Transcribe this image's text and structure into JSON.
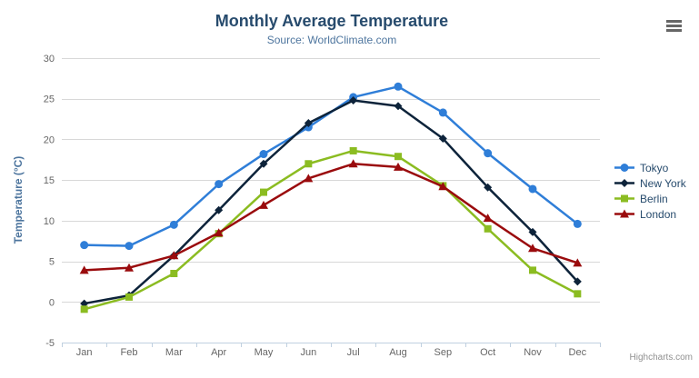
{
  "header": {
    "title": "Monthly Average Temperature",
    "subtitle": "Source: WorldClimate.com"
  },
  "credits": "Highcharts.com",
  "icons": {
    "menu": "hamburger-icon"
  },
  "colors": {
    "title": "#274b6d",
    "subtitle": "#4d759e",
    "axis_label": "#666666",
    "axis_line": "#c0d0e0",
    "gridline": "#d8d8d8",
    "legend_text": "#274b6d",
    "credits": "#909090",
    "menu_icon": "#666666"
  },
  "chart_data": {
    "type": "line",
    "title": "Monthly Average Temperature",
    "subtitle": "Source: WorldClimate.com",
    "xlabel": "",
    "ylabel": "Temperature (°C)",
    "ylim": [
      -5,
      30
    ],
    "yticks": [
      -5,
      0,
      5,
      10,
      15,
      20,
      25,
      30
    ],
    "grid": true,
    "legend_position": "right",
    "categories": [
      "Jan",
      "Feb",
      "Mar",
      "Apr",
      "May",
      "Jun",
      "Jul",
      "Aug",
      "Sep",
      "Oct",
      "Nov",
      "Dec"
    ],
    "series": [
      {
        "name": "Tokyo",
        "color": "#2f7ed8",
        "marker": "circle",
        "values": [
          7.0,
          6.9,
          9.5,
          14.5,
          18.2,
          21.5,
          25.2,
          26.5,
          23.3,
          18.3,
          13.9,
          9.6
        ]
      },
      {
        "name": "New York",
        "color": "#0d233a",
        "marker": "diamond",
        "values": [
          -0.2,
          0.8,
          5.7,
          11.3,
          17.0,
          22.0,
          24.8,
          24.1,
          20.1,
          14.1,
          8.6,
          2.5
        ]
      },
      {
        "name": "Berlin",
        "color": "#8bbc21",
        "marker": "square",
        "values": [
          -0.9,
          0.6,
          3.5,
          8.4,
          13.5,
          17.0,
          18.6,
          17.9,
          14.3,
          9.0,
          3.9,
          1.0
        ]
      },
      {
        "name": "London",
        "color": "#9a0b0d",
        "marker": "triangle",
        "values": [
          3.9,
          4.2,
          5.7,
          8.5,
          11.9,
          15.2,
          17.0,
          16.6,
          14.2,
          10.3,
          6.6,
          4.8
        ]
      }
    ]
  }
}
